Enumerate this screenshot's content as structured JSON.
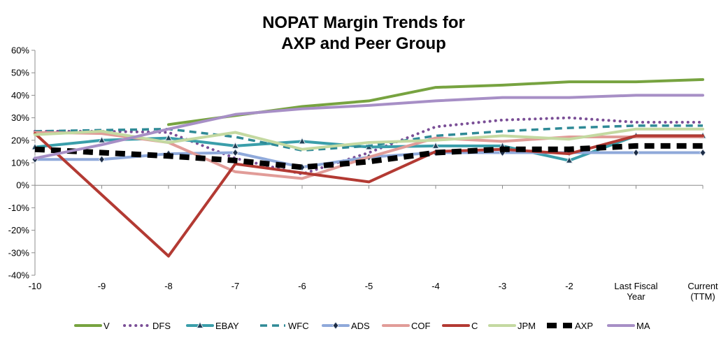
{
  "chart_data": {
    "type": "line",
    "title": "NOPAT Margin Trends for",
    "subtitle": "AXP and Peer Group",
    "categories": [
      "-10",
      "-9",
      "-8",
      "-7",
      "-6",
      "-5",
      "-4",
      "-3",
      "-2",
      "Last Fiscal Year",
      "Current (TTM)"
    ],
    "category_lines": [
      [
        "-10"
      ],
      [
        "-9"
      ],
      [
        "-8"
      ],
      [
        "-7"
      ],
      [
        "-6"
      ],
      [
        "-5"
      ],
      [
        "-4"
      ],
      [
        "-3"
      ],
      [
        "-2"
      ],
      [
        "Last Fiscal",
        "Year"
      ],
      [
        "Current",
        "(TTM)"
      ]
    ],
    "ylim": [
      -0.4,
      0.6
    ],
    "y_ticks": [
      -0.4,
      -0.3,
      -0.2,
      -0.1,
      0.0,
      0.1,
      0.2,
      0.3,
      0.4,
      0.5,
      0.6
    ],
    "y_tick_labels": [
      "-40%",
      "-30%",
      "-20%",
      "-10%",
      "0%",
      "10%",
      "20%",
      "30%",
      "40%",
      "50%",
      "60%"
    ],
    "grid": false,
    "legend_position": "bottom",
    "series": [
      {
        "name": "V",
        "color": "#77A340",
        "style": "solid",
        "values": [
          null,
          null,
          0.27,
          0.31,
          0.35,
          0.375,
          0.435,
          0.445,
          0.46,
          0.46,
          0.47
        ]
      },
      {
        "name": "DFS",
        "color": "#7A4E96",
        "style": "dotted",
        "values": [
          0.24,
          0.24,
          0.235,
          0.12,
          0.05,
          0.145,
          0.26,
          0.29,
          0.3,
          0.28,
          0.28
        ]
      },
      {
        "name": "EBAY",
        "color": "#3A9EAA",
        "style": "solid-tri",
        "values": [
          0.17,
          0.2,
          0.21,
          0.175,
          0.195,
          0.17,
          0.175,
          0.175,
          0.11,
          0.22,
          0.22
        ]
      },
      {
        "name": "WFC",
        "color": "#2F8A96",
        "style": "dashed",
        "values": [
          0.24,
          0.245,
          0.25,
          0.215,
          0.155,
          0.175,
          0.22,
          0.24,
          0.255,
          0.265,
          0.265
        ]
      },
      {
        "name": "ADS",
        "color": "#8FA9DA",
        "style": "solid-dia",
        "values": [
          0.115,
          0.115,
          0.14,
          0.145,
          0.08,
          0.125,
          0.145,
          0.145,
          0.145,
          0.145,
          0.145
        ]
      },
      {
        "name": "COF",
        "color": "#E19C98",
        "style": "solid",
        "values": [
          0.235,
          0.23,
          0.19,
          0.06,
          0.03,
          0.125,
          0.21,
          0.195,
          0.215,
          0.215,
          0.215
        ]
      },
      {
        "name": "C",
        "color": "#B33A33",
        "style": "solid",
        "values": [
          0.23,
          null,
          -0.315,
          0.095,
          0.055,
          0.015,
          0.15,
          0.16,
          0.14,
          0.22,
          0.22
        ]
      },
      {
        "name": "JPM",
        "color": "#C4D9A1",
        "style": "solid",
        "values": [
          0.225,
          0.24,
          0.19,
          0.235,
          0.16,
          0.19,
          0.2,
          0.22,
          0.205,
          0.25,
          0.25
        ]
      },
      {
        "name": "AXP",
        "color": "#000000",
        "style": "heavy-dash",
        "values": [
          0.16,
          0.145,
          0.13,
          0.11,
          0.08,
          0.105,
          0.145,
          0.16,
          0.16,
          0.175,
          0.175
        ]
      },
      {
        "name": "MA",
        "color": "#A78FC6",
        "style": "solid",
        "values": [
          0.12,
          0.18,
          0.25,
          0.315,
          0.34,
          0.355,
          0.375,
          0.39,
          0.39,
          0.4,
          0.4
        ]
      }
    ]
  }
}
